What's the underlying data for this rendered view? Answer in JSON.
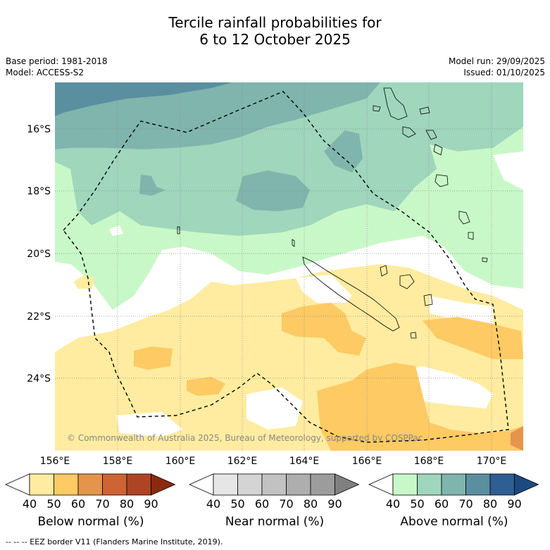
{
  "title": {
    "line1": "Tercile rainfall probabilities for",
    "line2": "6 to 12 October 2025"
  },
  "meta": {
    "base_period": "Base period: 1981-2018",
    "model": "Model: ACCESS-S2",
    "model_run": "Model run: 29/09/2025",
    "issued": "Issued: 01/10/2025"
  },
  "map": {
    "copyright": "© Commonwealth of Australia 2025, Bureau of Meteorology, supported by COSPPac",
    "lon_labels": [
      "156°E",
      "158°E",
      "160°E",
      "162°E",
      "164°E",
      "166°E",
      "168°E",
      "170°E"
    ],
    "lat_labels": [
      "16°S",
      "18°S",
      "20°S",
      "22°S",
      "24°S"
    ]
  },
  "colorbars": [
    {
      "label": "Below normal (%)",
      "ticks": [
        "40",
        "50",
        "60",
        "70",
        "80",
        "90"
      ],
      "colors": [
        "#ffffff",
        "#ffeca0",
        "#fdca64",
        "#e4954b",
        "#cc6433",
        "#ad4524",
        "#8c2a10"
      ]
    },
    {
      "label": "Near normal (%)",
      "ticks": [
        "40",
        "50",
        "60",
        "70",
        "80",
        "90"
      ],
      "colors": [
        "#ffffff",
        "#e6e6e6",
        "#d4d4d4",
        "#c2c2c2",
        "#aeaeae",
        "#9c9c9c",
        "#808080"
      ]
    },
    {
      "label": "Above normal (%)",
      "ticks": [
        "40",
        "50",
        "60",
        "70",
        "80",
        "90"
      ],
      "colors": [
        "#ffffff",
        "#c9f8c8",
        "#9fd6bc",
        "#7fb5ad",
        "#5a8fa0",
        "#2e5e92",
        "#1c4a80"
      ]
    }
  ],
  "footnote": "--  --  -- EEZ border V11 (Flanders Marine Institute, 2019).",
  "colors": {
    "below50": "#ffeca0",
    "below60": "#fdca64",
    "below70": "#e4954b",
    "above50": "#c9f8c8",
    "above60": "#9fd6bc",
    "above70": "#7fb5ad",
    "above80": "#5a8fa0"
  }
}
